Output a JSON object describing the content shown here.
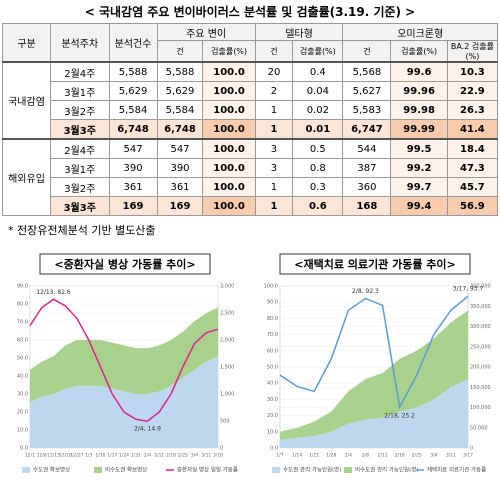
{
  "title": "< 국내감염 주요 변이바이러스 분석률 및 검출률(3.19. 기준) >",
  "table": {
    "header_top": [
      "구분",
      "분석주차",
      "분석건수",
      "주요 변이",
      "델타형",
      "오미크론형"
    ],
    "header_sub": [
      "건",
      "검출률(%)",
      "건",
      "검출률(%)",
      "건",
      "검출률(%)",
      "BA.2 검출률(%)"
    ],
    "groups": [
      {
        "name": "국내감염",
        "rows": [
          [
            "2월4주",
            "5,588",
            "5,588",
            "100.0",
            "20",
            "0.4",
            "5,568",
            "99.6",
            "10.3"
          ],
          [
            "3월1주",
            "5,629",
            "5,629",
            "100.0",
            "2",
            "0.04",
            "5,627",
            "99.96",
            "22.9"
          ],
          [
            "3월2주",
            "5,584",
            "5,584",
            "100.0",
            "1",
            "0.02",
            "5,583",
            "99.98",
            "26.3"
          ],
          [
            "3월3주",
            "6,748",
            "6,748",
            "100.0",
            "1",
            "0.01",
            "6,747",
            "99.99",
            "41.4"
          ]
        ]
      },
      {
        "name": "해외유입",
        "rows": [
          [
            "2월4주",
            "547",
            "547",
            "100.0",
            "3",
            "0.5",
            "544",
            "99.5",
            "18.4"
          ],
          [
            "3월1주",
            "390",
            "390",
            "100.0",
            "3",
            "0.8",
            "387",
            "99.2",
            "47.3"
          ],
          [
            "3월2주",
            "361",
            "361",
            "100.0",
            "1",
            "0.3",
            "360",
            "99.7",
            "45.7"
          ],
          [
            "3월3주",
            "169",
            "169",
            "100.0",
            "1",
            "0.6",
            "168",
            "99.4",
            "56.9"
          ]
        ]
      }
    ]
  },
  "note": "* 전장유전체분석 기반 별도산출",
  "chart_data": [
    {
      "type": "area-line",
      "title": "<중환자실 병상 가동률 추이>",
      "categories": [
        "12/1",
        "12/8",
        "12/13",
        "12/20",
        "12/27",
        "1/3",
        "1/10",
        "1/17",
        "1/24",
        "1/31",
        "2/4",
        "2/11",
        "2/18",
        "2/25",
        "3/4",
        "3/11",
        "3/18"
      ],
      "series": [
        {
          "name": "수도권 확보병상",
          "color": "#bdd7ee",
          "axis": "y2",
          "values": [
            850,
            950,
            1000,
            1100,
            1150,
            1150,
            1150,
            1100,
            1050,
            1000,
            1000,
            1050,
            1150,
            1300,
            1450,
            1600,
            1700
          ]
        },
        {
          "name": "비수도권 확보병상",
          "color": "#a9d18e",
          "axis": "y2",
          "values": [
            600,
            650,
            700,
            800,
            850,
            850,
            850,
            850,
            850,
            850,
            850,
            850,
            850,
            850,
            900,
            900,
            900
          ]
        },
        {
          "name": "중환자실 병상 일일 가동률",
          "color": "#e0218a",
          "axis": "y",
          "values": [
            68,
            78,
            82.6,
            79,
            72,
            60,
            45,
            30,
            20,
            16,
            14.9,
            20,
            30,
            45,
            58,
            64,
            66
          ]
        }
      ],
      "ylim": [
        0,
        90
      ],
      "yticks": [
        {
          "value": 0,
          "label": "0.0"
        },
        {
          "value": 10,
          "label": "10.0"
        },
        {
          "value": 20,
          "label": "20.0"
        },
        {
          "value": 30,
          "label": "30.0"
        },
        {
          "value": 40,
          "label": "40.0"
        },
        {
          "value": 50,
          "label": "50.0"
        },
        {
          "value": 60,
          "label": "60.0"
        },
        {
          "value": 70,
          "label": "70.0"
        },
        {
          "value": 80,
          "label": "80.0"
        },
        {
          "value": 90,
          "label": "90.0"
        }
      ],
      "y2lim": [
        0,
        3000
      ],
      "y2ticks": [
        0,
        500,
        {
          "value": 1000,
          "label": "1,000"
        },
        {
          "value": 1500,
          "label": "1,500"
        },
        {
          "value": 2000,
          "label": "2,000"
        },
        {
          "value": 2500,
          "label": "2,500"
        },
        {
          "value": 3000,
          "label": "3,000"
        }
      ],
      "annotations": [
        {
          "text": "12/13, 82.6"
        },
        {
          "text": "2/4, 14.9"
        }
      ]
    },
    {
      "type": "area-line",
      "title": "<재택치료 의료기관 가동률 추이>",
      "categories": [
        "1/7",
        "1/14",
        "1/21",
        "1/28",
        "2/4",
        "2/8",
        "2/11",
        "2/18",
        "2/25",
        "3/4",
        "3/11",
        "3/17"
      ],
      "series": [
        {
          "name": "수도권 관리 가능인원(명)",
          "color": "#bdd7ee",
          "axis": "y2",
          "values": [
            20000,
            25000,
            30000,
            40000,
            60000,
            70000,
            75000,
            90000,
            100000,
            120000,
            150000,
            170000
          ]
        },
        {
          "name": "비수도권 관리 가능인원(명)",
          "color": "#a9d18e",
          "axis": "y2",
          "values": [
            20000,
            25000,
            35000,
            50000,
            80000,
            100000,
            110000,
            130000,
            140000,
            150000,
            160000,
            170000
          ]
        },
        {
          "name": "재택치료 의료기관 가동률",
          "color": "#5b9bd5",
          "axis": "y",
          "values": [
            45,
            38,
            35,
            55,
            85,
            92.3,
            88,
            25.2,
            45,
            70,
            85,
            93.7
          ]
        }
      ],
      "ylim": [
        0,
        100
      ],
      "yticks": [
        {
          "value": 0,
          "label": "0.0"
        },
        {
          "value": 10,
          "label": "10.0"
        },
        {
          "value": 20,
          "label": "20.0"
        },
        {
          "value": 30,
          "label": "30.0"
        },
        {
          "value": 40,
          "label": "40.0"
        },
        {
          "value": 50,
          "label": "50.0"
        },
        {
          "value": 60,
          "label": "60.0"
        },
        {
          "value": 70,
          "label": "70.0"
        },
        {
          "value": 80,
          "label": "80.0"
        },
        {
          "value": 90,
          "label": "90.0"
        },
        {
          "value": 100,
          "label": "100.0"
        }
      ],
      "y2lim": [
        0,
        400000
      ],
      "y2ticks": [
        0,
        {
          "value": 50000,
          "label": "50,000"
        },
        {
          "value": 100000,
          "label": "100,000"
        },
        {
          "value": 150000,
          "label": "150,000"
        },
        {
          "value": 200000,
          "label": "200,000"
        },
        {
          "value": 250000,
          "label": "250,000"
        },
        {
          "value": 300000,
          "label": "300,000"
        },
        {
          "value": 350000,
          "label": "350,000"
        },
        {
          "value": 400000,
          "label": "400,000"
        }
      ],
      "annotations": [
        {
          "text": "2/8, 92.3"
        },
        {
          "text": "2/18, 25.2"
        },
        {
          "text": "3/17, 93.7"
        }
      ]
    }
  ]
}
